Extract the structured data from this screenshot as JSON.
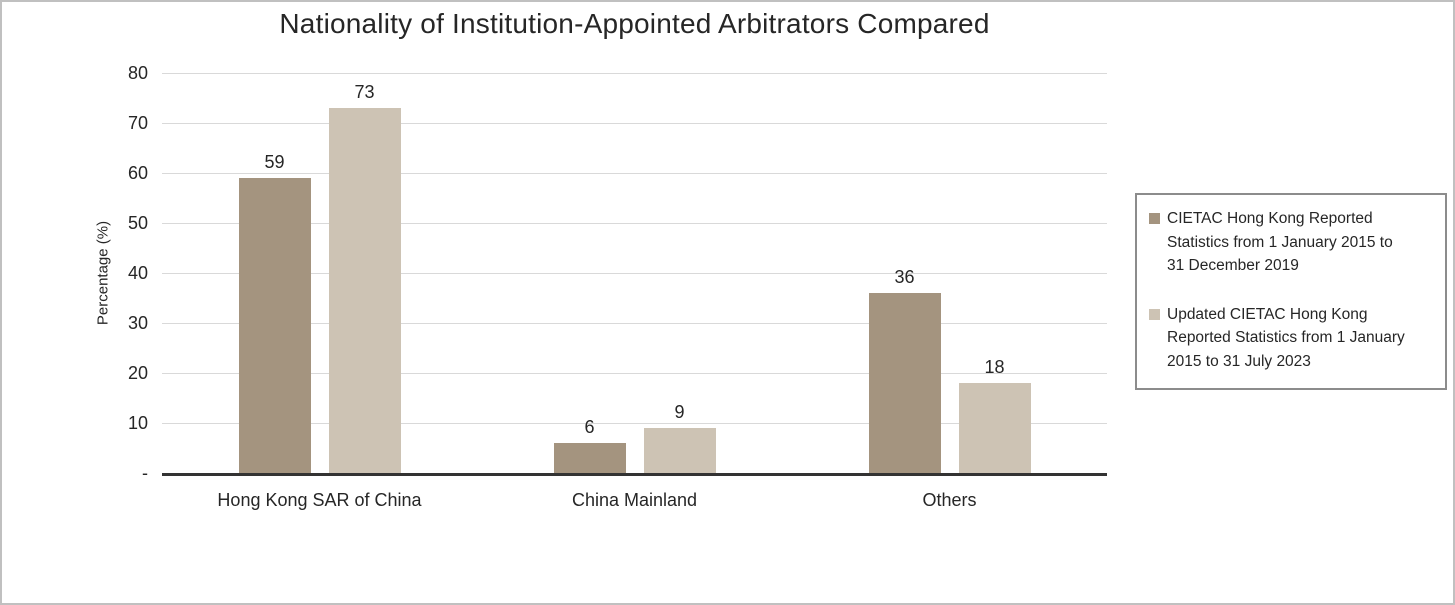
{
  "chart_data": {
    "type": "bar",
    "title": "Nationality of Institution-Appointed Arbitrators Compared",
    "categories": [
      "Hong Kong SAR of China",
      "China Mainland",
      "Others"
    ],
    "series": [
      {
        "name": "CIETAC Hong Kong Reported Statistics from 1 January 2015 to 31 December 2019",
        "values": [
          59,
          6,
          36
        ],
        "color": "#a4947f"
      },
      {
        "name": "Updated CIETAC Hong Kong Reported Statistics from 1 January 2015 to 31 July 2023",
        "values": [
          73,
          9,
          18
        ],
        "color": "#cdc3b4"
      }
    ],
    "ylabel": "Percentage (%)",
    "ylim": [
      0,
      80
    ],
    "ytick_step": 10,
    "zero_tick_label": "-",
    "grid": true,
    "gridline_color": "#d9d9d9",
    "axis_line_color": "#333333",
    "text_color": "#262626",
    "legend_position": "right",
    "legend_border_color": "#8c8c8c",
    "figure_border_color": "#c0c0c0"
  }
}
